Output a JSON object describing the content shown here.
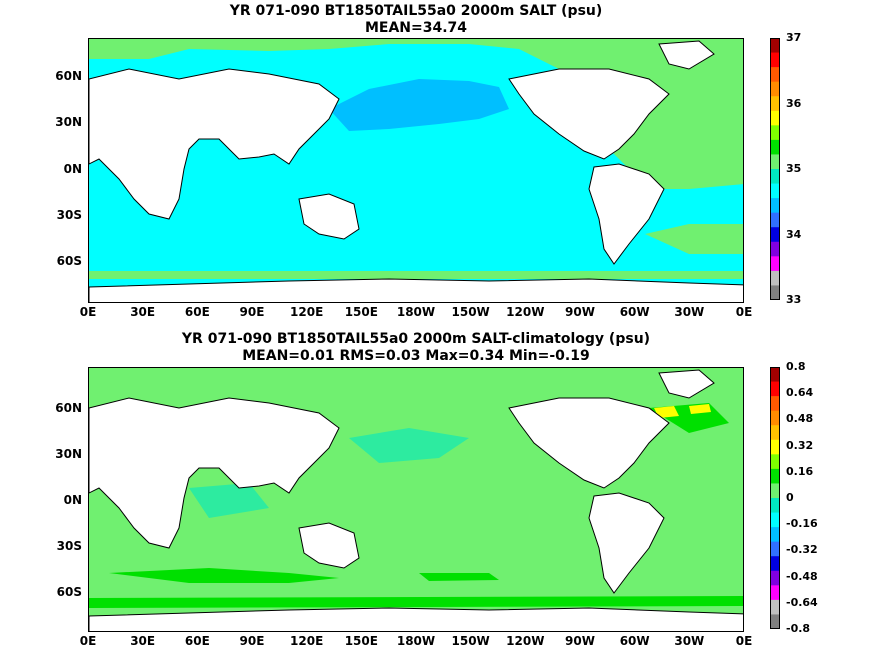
{
  "panels": [
    {
      "title_line1": "YR 071-090 BT1850TAIL55a0 2000m SALT (psu)",
      "title_line2": "MEAN=34.74",
      "lat_labels": [
        "60N",
        "30N",
        "0N",
        "30S",
        "60S"
      ],
      "lon_labels": [
        "0E",
        "30E",
        "60E",
        "90E",
        "120E",
        "150E",
        "180W",
        "150W",
        "120W",
        "90W",
        "60W",
        "30W",
        "0E"
      ],
      "colorbar_labels": [
        "37",
        "36",
        "35",
        "34",
        "33"
      ],
      "colorbar_colors": [
        "#a00000",
        "#ff0000",
        "#ff5a00",
        "#ff8c00",
        "#ffc000",
        "#ffff00",
        "#7fff00",
        "#00e000",
        "#70f070",
        "#00e8c0",
        "#00ffff",
        "#00bfff",
        "#3070ff",
        "#0000e0",
        "#8000e0",
        "#ff00ff",
        "#c0c0c0",
        "#808080"
      ]
    },
    {
      "title_line1": "YR 071-090 BT1850TAIL55a0 2000m SALT-climatology (psu)",
      "title_line2": "MEAN=0.01   RMS=0.03   Max=0.34   Min=-0.19",
      "lat_labels": [
        "60N",
        "30N",
        "0N",
        "30S",
        "60S"
      ],
      "lon_labels": [
        "0E",
        "30E",
        "60E",
        "90E",
        "120E",
        "150E",
        "180W",
        "150W",
        "120W",
        "90W",
        "60W",
        "30W",
        "0E"
      ],
      "colorbar_labels": [
        "0.8",
        "0.64",
        "0.48",
        "0.32",
        "0.16",
        "0",
        "-0.16",
        "-0.32",
        "-0.48",
        "-0.64",
        "-0.8"
      ],
      "colorbar_colors": [
        "#a00000",
        "#ff0000",
        "#ff5a00",
        "#ff8c00",
        "#ffc000",
        "#ffff00",
        "#7fff00",
        "#00e000",
        "#70f070",
        "#00e8c0",
        "#00ffff",
        "#00bfff",
        "#3070ff",
        "#0000e0",
        "#8000e0",
        "#ff00ff",
        "#c0c0c0",
        "#808080"
      ]
    }
  ],
  "colors": {
    "land": "#ffffff",
    "coast": "#000000",
    "ocean_top": "#00ffff",
    "ocean_top_pacific_north": "#00bfff",
    "ocean_top_atlantic": "#70f070",
    "ocean_bottom": "#70f070",
    "ocean_bottom_patch": "#00e000"
  }
}
